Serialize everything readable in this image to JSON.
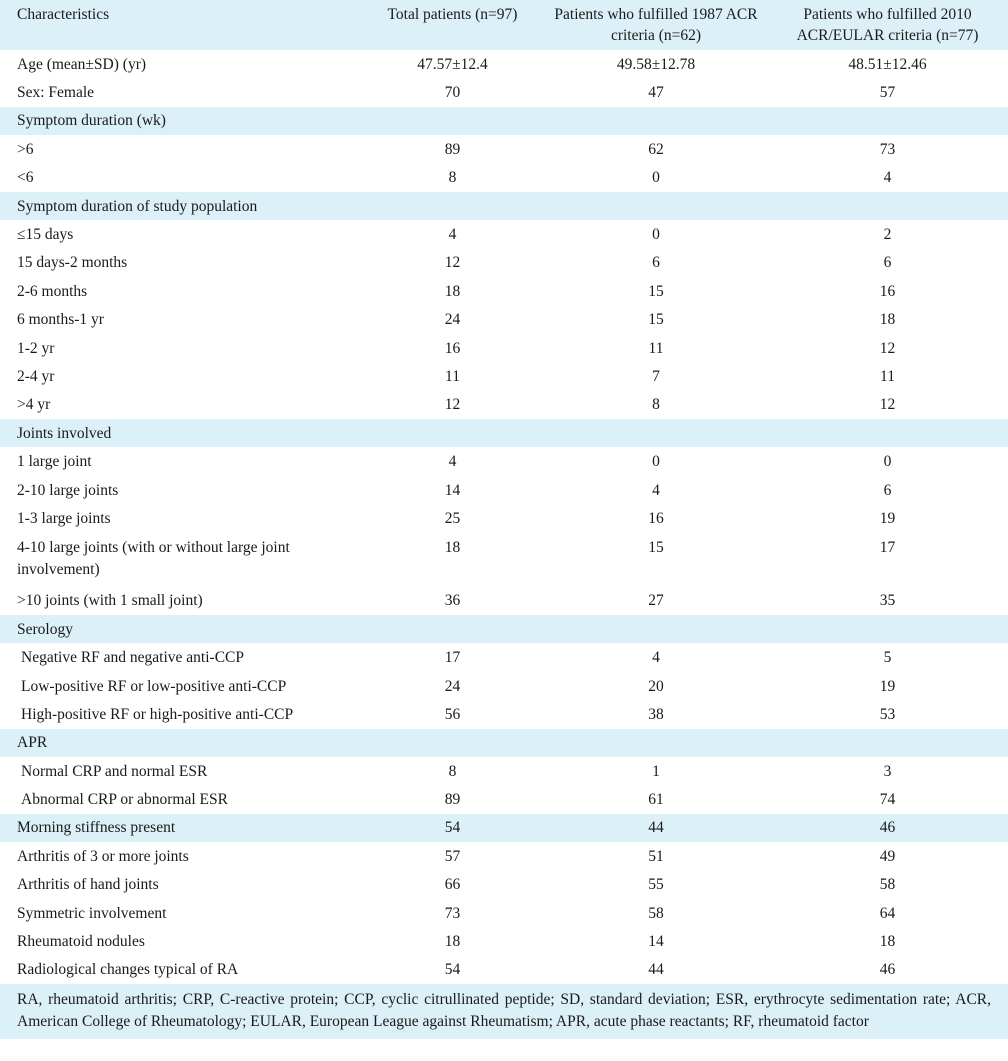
{
  "table": {
    "headers": [
      "Characteristics",
      "Total patients (n=97)",
      "Patients who fulfilled 1987 ACR criteria (n=62)",
      "Patients who fulfilled 2010 ACR/EULAR criteria (n=77)"
    ],
    "rows": [
      {
        "label": "Age (mean±SD) (yr)",
        "v1": "47.57±12.4",
        "v2": "49.58±12.78",
        "v3": "48.51±12.46"
      },
      {
        "label": "Sex: Female",
        "v1": "70",
        "v2": "47",
        "v3": "57"
      },
      {
        "label": "Symptom duration (wk)",
        "v1": "",
        "v2": "",
        "v3": ""
      },
      {
        "label": ">6",
        "v1": "89",
        "v2": "62",
        "v3": "73"
      },
      {
        "label": "<6",
        "v1": "8",
        "v2": "0",
        "v3": "4"
      },
      {
        "label": "Symptom duration of study population",
        "v1": "",
        "v2": "",
        "v3": ""
      },
      {
        "label": "≤15 days",
        "v1": "4",
        "v2": "0",
        "v3": "2"
      },
      {
        "label": "15 days-2 months",
        "v1": "12",
        "v2": "6",
        "v3": "6"
      },
      {
        "label": "2-6 months",
        "v1": "18",
        "v2": "15",
        "v3": "16"
      },
      {
        "label": "6 months-1 yr",
        "v1": "24",
        "v2": "15",
        "v3": "18"
      },
      {
        "label": "1-2 yr",
        "v1": "16",
        "v2": "11",
        "v3": "12"
      },
      {
        "label": "2-4 yr",
        "v1": "11",
        "v2": "7",
        "v3": "11"
      },
      {
        "label": ">4 yr",
        "v1": "12",
        "v2": "8",
        "v3": "12"
      },
      {
        "label": "Joints involved",
        "v1": "",
        "v2": "",
        "v3": ""
      },
      {
        "label": "1 large joint",
        "v1": "4",
        "v2": "0",
        "v3": "0"
      },
      {
        "label": "2-10 large joints",
        "v1": "14",
        "v2": "4",
        "v3": "6"
      },
      {
        "label": "1-3 large joints",
        "v1": "25",
        "v2": "16",
        "v3": "19"
      },
      {
        "label": "4-10 large joints (with or without large joint involvement)",
        "v1": "18",
        "v2": "15",
        "v3": "17"
      },
      {
        "label": ">10 joints (with 1 small joint)",
        "v1": "36",
        "v2": "27",
        "v3": "35"
      },
      {
        "label": "Serology",
        "v1": "",
        "v2": "",
        "v3": ""
      },
      {
        "label": "Negative RF and negative anti-CCP",
        "v1": "17",
        "v2": "4",
        "v3": "5"
      },
      {
        "label": "Low-positive RF or low-positive anti-CCP",
        "v1": "24",
        "v2": "20",
        "v3": "19"
      },
      {
        "label": "High-positive RF or high-positive anti-CCP",
        "v1": "56",
        "v2": "38",
        "v3": "53"
      },
      {
        "label": "APR",
        "v1": "",
        "v2": "",
        "v3": ""
      },
      {
        "label": "Normal CRP and normal ESR",
        "v1": "8",
        "v2": "1",
        "v3": "3"
      },
      {
        "label": "Abnormal CRP or abnormal ESR",
        "v1": "89",
        "v2": "61",
        "v3": "74"
      },
      {
        "label": "Morning stiffness present",
        "v1": "54",
        "v2": "44",
        "v3": "46"
      },
      {
        "label": "Arthritis of 3 or more joints",
        "v1": "57",
        "v2": "51",
        "v3": "49"
      },
      {
        "label": "Arthritis of hand joints",
        "v1": "66",
        "v2": "55",
        "v3": "58"
      },
      {
        "label": "Symmetric involvement",
        "v1": "73",
        "v2": "58",
        "v3": "64"
      },
      {
        "label": "Rheumatoid nodules",
        "v1": "18",
        "v2": "14",
        "v3": "18"
      },
      {
        "label": "Radiological changes typical of RA",
        "v1": "54",
        "v2": "44",
        "v3": "46"
      }
    ]
  },
  "footnote": "RA, rheumatoid arthritis; CRP, C-reactive protein; CCP, cyclic citrullinated peptide; SD, standard deviation; ESR, erythrocyte sedimentation rate; ACR, American College of Rheumatology; EULAR, European League against Rheumatism; APR, acute phase reactants; RF, rheumatoid factor",
  "colors": {
    "band": "#dcf0f8",
    "text": "#1a1a1a"
  }
}
